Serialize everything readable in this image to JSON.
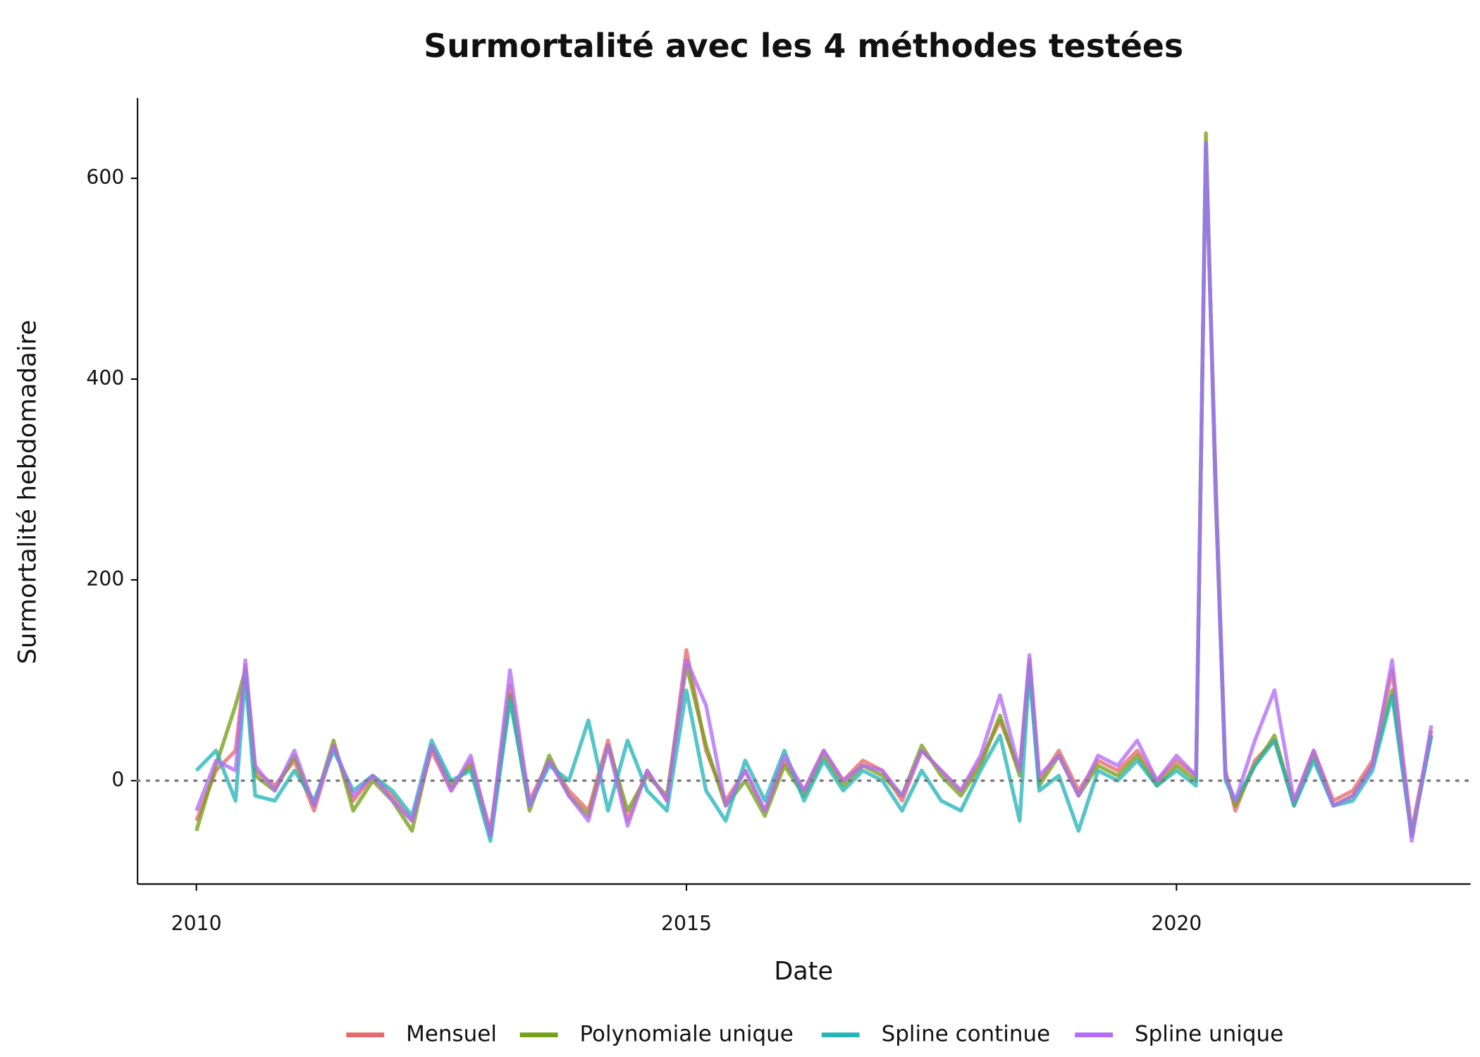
{
  "chart_data": {
    "type": "line",
    "title": "Surmortalité avec les 4 méthodes testées",
    "xlabel": "Date",
    "ylabel": "Surmortalité hebdomadaire",
    "x": [
      2010.0,
      2010.2,
      2010.4,
      2010.5,
      2010.6,
      2010.8,
      2011.0,
      2011.2,
      2011.4,
      2011.6,
      2011.8,
      2012.0,
      2012.2,
      2012.4,
      2012.6,
      2012.8,
      2013.0,
      2013.2,
      2013.4,
      2013.6,
      2013.8,
      2014.0,
      2014.2,
      2014.4,
      2014.6,
      2014.8,
      2015.0,
      2015.2,
      2015.4,
      2015.6,
      2015.8,
      2016.0,
      2016.2,
      2016.4,
      2016.6,
      2016.8,
      2017.0,
      2017.2,
      2017.4,
      2017.6,
      2017.8,
      2018.0,
      2018.2,
      2018.4,
      2018.5,
      2018.6,
      2018.8,
      2019.0,
      2019.2,
      2019.4,
      2019.6,
      2019.8,
      2020.0,
      2020.2,
      2020.3,
      2020.4,
      2020.5,
      2020.6,
      2020.8,
      2021.0,
      2021.2,
      2021.4,
      2021.6,
      2021.8,
      2022.0,
      2022.2,
      2022.4,
      2022.6
    ],
    "series": [
      {
        "name": "Mensuel",
        "color": "#e8686a",
        "values": [
          -40,
          10,
          30,
          115,
          10,
          -5,
          20,
          -30,
          35,
          -20,
          5,
          -15,
          -40,
          30,
          -10,
          20,
          -50,
          95,
          -20,
          20,
          -10,
          -30,
          40,
          -40,
          10,
          -20,
          130,
          30,
          -20,
          10,
          -30,
          20,
          -10,
          30,
          0,
          20,
          10,
          -20,
          30,
          10,
          -10,
          20,
          60,
          10,
          120,
          0,
          30,
          -10,
          20,
          10,
          30,
          0,
          20,
          5,
          630,
          300,
          10,
          -30,
          20,
          40,
          -20,
          30,
          -20,
          -10,
          20,
          110,
          -50,
          50
        ]
      },
      {
        "name": "Polynomiale unique",
        "color": "#76a01a",
        "values": [
          -50,
          15,
          75,
          110,
          5,
          -10,
          25,
          -25,
          40,
          -30,
          0,
          -20,
          -50,
          35,
          -5,
          15,
          -55,
          85,
          -30,
          25,
          -15,
          -35,
          35,
          -30,
          5,
          -15,
          115,
          35,
          -25,
          0,
          -35,
          15,
          -15,
          25,
          -5,
          15,
          5,
          -15,
          35,
          5,
          -15,
          15,
          65,
          5,
          115,
          -5,
          25,
          -15,
          15,
          5,
          25,
          -5,
          15,
          0,
          645,
          280,
          5,
          -25,
          15,
          45,
          -25,
          25,
          -25,
          -15,
          15,
          90,
          -55,
          45
        ]
      },
      {
        "name": "Spline continue",
        "color": "#25b5b8",
        "values": [
          10,
          30,
          -20,
          105,
          -15,
          -20,
          10,
          -20,
          30,
          -10,
          5,
          -10,
          -35,
          40,
          0,
          10,
          -60,
          80,
          -25,
          15,
          0,
          60,
          -30,
          40,
          -10,
          -30,
          90,
          -10,
          -40,
          20,
          -20,
          30,
          -20,
          20,
          -10,
          10,
          0,
          -30,
          10,
          -20,
          -30,
          10,
          45,
          -40,
          110,
          -10,
          5,
          -50,
          10,
          0,
          20,
          -5,
          10,
          -5,
          635,
          290,
          0,
          -20,
          15,
          40,
          -25,
          20,
          -25,
          -20,
          10,
          85,
          -55,
          45
        ]
      },
      {
        "name": "Spline unique",
        "color": "#b36cf5",
        "values": [
          -30,
          20,
          10,
          120,
          15,
          -10,
          30,
          -25,
          35,
          -15,
          5,
          -20,
          -40,
          35,
          -10,
          25,
          -55,
          110,
          -25,
          20,
          -15,
          -40,
          35,
          -45,
          10,
          -20,
          120,
          75,
          -25,
          10,
          -30,
          25,
          -10,
          30,
          0,
          15,
          10,
          -15,
          30,
          10,
          -10,
          25,
          85,
          10,
          125,
          5,
          25,
          -15,
          25,
          15,
          40,
          0,
          25,
          5,
          635,
          285,
          5,
          -20,
          40,
          90,
          -20,
          30,
          -25,
          -15,
          15,
          120,
          -60,
          55
        ]
      }
    ],
    "xlim": [
      2009.4,
      2023.0
    ],
    "xticks": [
      2010,
      2015,
      2020
    ],
    "ylim": [
      -103,
      680
    ],
    "yticks": [
      0,
      200,
      400,
      600
    ],
    "hline": 0,
    "legend": "bottom"
  }
}
